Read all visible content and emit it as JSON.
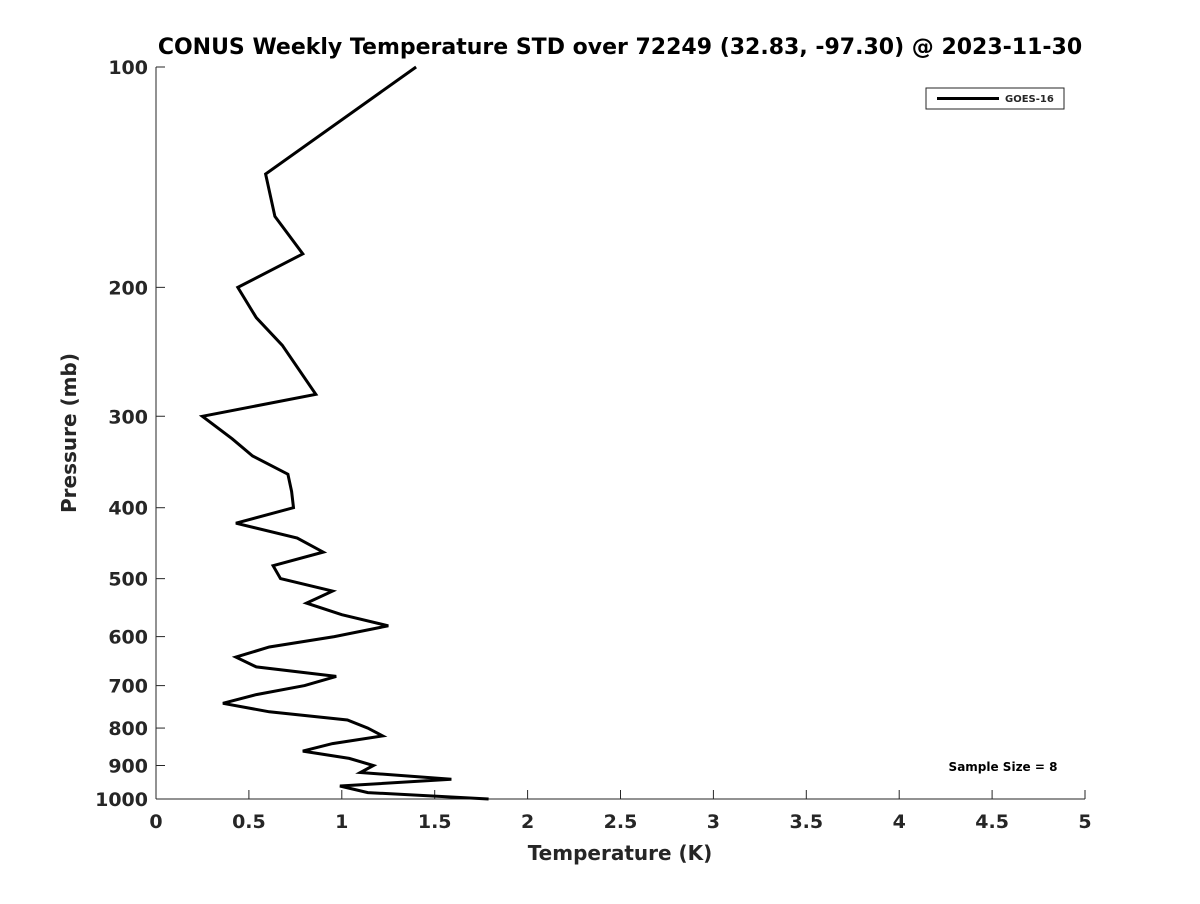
{
  "chart_data": {
    "type": "line",
    "title": "CONUS Weekly Temperature STD over 72249 (32.83, -97.30) @ 2023-11-30",
    "xlabel": "Temperature (K)",
    "ylabel": "Pressure (mb)",
    "xlim": [
      0,
      5
    ],
    "ylim": [
      100,
      1000
    ],
    "yscale": "log",
    "y_reversed": true,
    "grid": false,
    "xticks": [
      "0",
      "0.5",
      "1",
      "1.5",
      "2",
      "2.5",
      "3",
      "3.5",
      "4",
      "4.5",
      "5"
    ],
    "xtick_values": [
      0,
      0.5,
      1,
      1.5,
      2,
      2.5,
      3,
      3.5,
      4,
      4.5,
      5
    ],
    "yticks": [
      "100",
      "200",
      "300",
      "400",
      "500",
      "600",
      "700",
      "800",
      "900",
      "1000"
    ],
    "ytick_values": [
      100,
      200,
      300,
      400,
      500,
      600,
      700,
      800,
      900,
      1000
    ],
    "legend": {
      "placement": "top-right",
      "entries": [
        "GOES-16"
      ]
    },
    "annotation": "Sample Size = 8",
    "series": [
      {
        "name": "GOES-16",
        "color": "#000000",
        "pressure": [
          100,
          140,
          160,
          180,
          200,
          220,
          240,
          280,
          300,
          322,
          340,
          360,
          380,
          400,
          420,
          440,
          460,
          480,
          500,
          520,
          540,
          560,
          580,
          600,
          620,
          640,
          660,
          680,
          700,
          720,
          740,
          760,
          780,
          800,
          820,
          840,
          860,
          880,
          900,
          920,
          940,
          960,
          980,
          1000
        ],
        "temperature_std": [
          1.4,
          0.59,
          0.64,
          0.79,
          0.44,
          0.54,
          0.68,
          0.86,
          0.25,
          0.41,
          0.52,
          0.71,
          0.73,
          0.74,
          0.43,
          0.76,
          0.9,
          0.63,
          0.67,
          0.95,
          0.81,
          1.0,
          1.25,
          0.96,
          0.61,
          0.43,
          0.54,
          0.97,
          0.8,
          0.54,
          0.36,
          0.61,
          1.03,
          1.14,
          1.22,
          0.95,
          0.79,
          1.04,
          1.17,
          1.1,
          1.59,
          0.99,
          1.14,
          1.79
        ]
      }
    ]
  }
}
